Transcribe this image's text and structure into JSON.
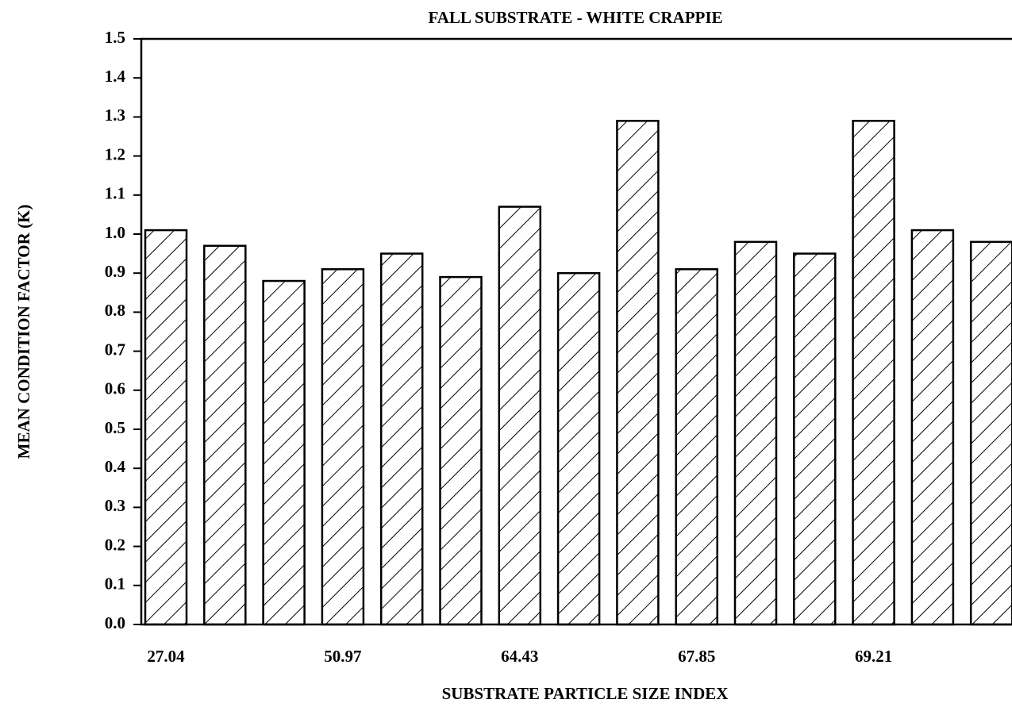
{
  "chart_data": {
    "type": "bar",
    "title": "FALL SUBSTRATE - WHITE CRAPPIE",
    "x_label": "SUBSTRATE PARTICLE SIZE INDEX",
    "y_label": "MEAN CONDITION FACTOR (K)",
    "categories": [
      "27.04",
      null,
      null,
      "50.97",
      null,
      null,
      "64.43",
      null,
      null,
      "67.85",
      null,
      null,
      "69.21",
      null,
      null
    ],
    "values": [
      1.01,
      0.97,
      0.88,
      0.91,
      0.95,
      0.89,
      1.07,
      0.9,
      1.29,
      0.91,
      0.98,
      0.95,
      1.29,
      1.01,
      0.98
    ],
    "color": "#000000",
    "ylim": [
      0,
      1.5
    ],
    "yticks": [
      {
        "value": 0,
        "label": "0.0"
      },
      0.1,
      0.2,
      0.3,
      0.4,
      0.5,
      0.6,
      0.7,
      0.8,
      0.9,
      {
        "value": 1,
        "label": "1.0"
      },
      1.1,
      1.2,
      1.3,
      1.4,
      1.5
    ],
    "grid": false
  }
}
